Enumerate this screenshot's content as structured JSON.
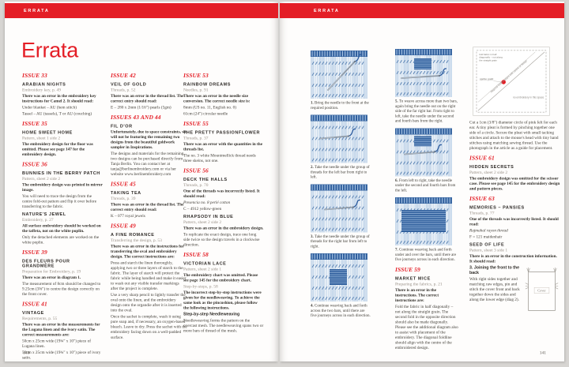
{
  "page": {
    "left_header": "ERRATA",
    "right_header": "ERRATA",
    "title": "Errata",
    "left_page_number": "140",
    "right_page_number": "141"
  },
  "colors": {
    "accent_red": "#e41e26",
    "step_bg": "#c9daec",
    "step_blue": "#32619e",
    "needle_gray": "#8f9aa6",
    "thread_blue": "#2a5a9d"
  },
  "left_columns": {
    "col1": [
      {
        "issue": "ISSUE 33",
        "sections": [
          {
            "title": "ARABIAN NIGHTS",
            "subtitle": "Embroidery key, p. 49",
            "paras": [
              {
                "style": "bold",
                "text": "There was an error in the embroidery key instructions for Camel 2. It should read:"
              },
              {
                "style": "normal",
                "text": "Under blanket – AU (hem stitch)"
              },
              {
                "style": "normal",
                "text": "Tassel – AU (tassels), T or AU (couching)"
              }
            ]
          }
        ]
      },
      {
        "issue": "ISSUE 35",
        "sections": [
          {
            "title": "HOME SWEET HOME",
            "subtitle": "Pattern, sheet 1 side 2",
            "paras": [
              {
                "style": "bold",
                "text": "The embroidery design for the floor was omitted. Please see page 147 for the embroidery design."
              }
            ]
          }
        ]
      },
      {
        "issue": "ISSUE 36",
        "sections": [
          {
            "title": "BUNNIES IN THE BERRY PATCH",
            "subtitle": "Pattern, sheet 2 side 2",
            "paras": [
              {
                "style": "bold",
                "text": "The embroidery design was printed in mirror image."
              },
              {
                "style": "normal",
                "text": "You will need to trace the design from the centre fold-out pattern and flip it over before transferring to the fabric."
              }
            ]
          },
          {
            "title": "NATURE'S JEWEL",
            "subtitle": "Embroidery, p. 27",
            "paras": [
              {
                "style": "bold",
                "text": "All surface embroidery should be worked on the taffeta, not on the white poplin."
              },
              {
                "style": "normal",
                "text": "Only the detached elements are worked on the white poplin."
              }
            ]
          }
        ]
      },
      {
        "issue": "ISSUE 39",
        "sections": [
          {
            "title": "DES FLEURS POUR GRANDMÈRE",
            "subtitle": "Preparation for Embroidery, p. 19",
            "paras": [
              {
                "style": "bold",
                "text": "There was an error in diagram 1."
              },
              {
                "style": "normal",
                "text": "The measurement of 8cm should be changed to 9.25cm (3⅝\") to centre the design correctly on the front cover."
              }
            ]
          }
        ]
      },
      {
        "issue": "ISSUE 41",
        "sections": [
          {
            "title": "VINTAGE",
            "subtitle": "Requirements, p. 55",
            "paras": [
              {
                "style": "bold",
                "text": "There was an error in the measurements for the Lugana linen and the ivory satin. The correct measurements are:"
              },
              {
                "style": "normal",
                "text": "50cm x 25cm wide (19¾\" x 10\") piece of Lugana linen."
              },
              {
                "style": "normal",
                "text": "50cm x 25cm wide (19¾\" x 10\") piece of ivory satin."
              }
            ]
          }
        ]
      }
    ],
    "col2": [
      {
        "issue": "ISSUE 42",
        "sections": [
          {
            "title": "VEIL OF GOLD",
            "subtitle": "Threads, p. 52",
            "paras": [
              {
                "style": "bold",
                "text": "There was an error in the thread list. The correct entry should read:"
              },
              {
                "style": "normal",
                "text": "E – 280 x 2mm (1/16\") pearls (5gm)"
              }
            ]
          }
        ]
      },
      {
        "issue": "ISSUES 43 AND 44",
        "sections": [
          {
            "title": "FIL D'OR",
            "subtitle": "",
            "paras": [
              {
                "style": "bold",
                "text": "Unfortunately, due to space constraints, we will not be featuring the remaining two designs from the beautiful goldwork sampler in Inspirations."
              },
              {
                "style": "normal",
                "text": "The designs and materials for the remaining two designs can be purchased directly from Tanja Berlin. You can contact her at tanja@berlinembroidery.com or via her website www.berlinembroidery.com"
              }
            ]
          }
        ]
      },
      {
        "issue": "ISSUE 45",
        "sections": [
          {
            "title": "TAKING TEA",
            "subtitle": "Threads, p. 39",
            "paras": [
              {
                "style": "bold",
                "text": "There was an error in the thread list. The correct entry should read:"
              },
              {
                "style": "normal",
                "text": "K – 077 royal jewels"
              }
            ]
          }
        ]
      },
      {
        "issue": "ISSUE 49",
        "sections": [
          {
            "title": "A FINE ROMANCE",
            "subtitle": "Transferring the design, p. 53",
            "paras": [
              {
                "style": "bold",
                "text": "There was an error in the instructions for transferring the oval and embroidery design. The correct instructions are:"
              },
              {
                "style": "normal",
                "text": "Press and starch the linen thoroughly, applying two or three layers of starch to the fabric. The layer of starch will protect the fabric while being handled and make it easier to wash out any visible transfer markings after the project is complete."
              },
              {
                "style": "normal",
                "text": "Use a very sharp pencil to lightly transfer the oval onto the linen, and the embroidery design onto the organdie after it is inserted into the oval."
              },
              {
                "style": "normal",
                "text": "Once the sachet is complete, wash it using pure soap and, if necessary, an oxygen-based bleach. Leave to dry. Press the sachet with the embroidery facing down on a well-padded surface."
              }
            ]
          }
        ]
      }
    ],
    "col3": [
      {
        "issue": "ISSUE 53",
        "sections": [
          {
            "title": "RAINBOW DREAMS",
            "subtitle": "Needles, p. 91",
            "paras": [
              {
                "style": "bold",
                "text": "There was an error in the needle size conversion. The correct needle size is:"
              },
              {
                "style": "normal",
                "text": "8mm (US no. 11, English no. 0)"
              },
              {
                "style": "normal",
                "text": "61cm (24\") circular needle"
              }
            ]
          }
        ]
      },
      {
        "issue": "ISSUE 55",
        "sections": [
          {
            "title": "THE PRETTY PASSIONFLOWER",
            "subtitle": "Threads, p. 37",
            "paras": [
              {
                "style": "bold",
                "text": "There was an error with the quantities in the threads list."
              },
              {
                "style": "normal",
                "text": "The no. 3 white Mountmellick thread needs three skeins, not one."
              }
            ]
          }
        ]
      },
      {
        "issue": "ISSUE 56",
        "sections": [
          {
            "title": "DECK THE HALLS",
            "subtitle": "Threads, p. 70",
            "paras": [
              {
                "style": "bold",
                "text": "One of the threads was incorrectly listed. It should read:"
              },
              {
                "style": "italic",
                "text": "Presencia no. 8 perlé cotton"
              },
              {
                "style": "normal",
                "text": "C – 4912 yellow-green"
              }
            ]
          },
          {
            "title": "RHAPSODY IN BLUE",
            "subtitle": "Pattern, sheet 2 side 2",
            "paras": [
              {
                "style": "bold",
                "text": "There was an error in the embroidery design."
              },
              {
                "style": "normal",
                "text": "To replicate the exact design, trace one long side twice so the design travels in a clockwise direction."
              }
            ]
          }
        ]
      },
      {
        "issue": "ISSUE 58",
        "sections": [
          {
            "title": "VICTORIAN LACE",
            "subtitle": "Pattern, sheet 2 side 1",
            "paras": [
              {
                "style": "bold",
                "text": "The embroidery chart was omitted. Please see page 145 for the embroidery chart."
              },
              {
                "style": "sub",
                "text": "Step-by-steps, p. 58"
              },
              {
                "style": "bold",
                "text": "The incorrect step-by-step instructions were given for the needleweaving. To achieve the same look as the pincushion, please follow the following instructions."
              },
              {
                "style": "boldhead",
                "text": "Step-by-step Needleweaving"
              },
              {
                "style": "normal",
                "text": "Needleweaving forms the pattern on the overcast mesh. The needleweaving spans two or more bars of thread of the mesh."
              }
            ]
          }
        ]
      }
    ]
  },
  "steps": {
    "col1": [
      {
        "num": "1.",
        "text": "Bring the needle to the front at the required position.",
        "art": {
          "patch": null,
          "needle": [
            22,
            50,
            56,
            14
          ],
          "thread": true
        }
      },
      {
        "num": "2.",
        "text": "Take the needle under the group of threads for the left bar from right to left.",
        "art": {
          "patch": null,
          "needle": [
            12,
            30,
            48,
            27
          ],
          "thread": true
        }
      },
      {
        "num": "3.",
        "text": "Take the needle under the group of threads for the right bar from left to right.",
        "art": {
          "patch": null,
          "needle": [
            18,
            32,
            54,
            29
          ],
          "thread": true
        }
      },
      {
        "num": "4.",
        "text": "Continue weaving back and forth across the two bars, until there are five journeys across in each direction.",
        "art": {
          "patch": [
            24,
            20,
            22,
            20
          ],
          "needle": null,
          "thread": false
        }
      }
    ],
    "col2": [
      {
        "num": "5.",
        "text": "To weave across more than two bars, again bring the needle out on the right side of the far right bar. From right to left, take the needle under the second and fourth bars from the right.",
        "art": {
          "patch": [
            24,
            12,
            22,
            14
          ],
          "needle": [
            8,
            37,
            56,
            34
          ],
          "thread": true
        }
      },
      {
        "num": "6.",
        "text": "From left to right, take the needle under the second and fourth bars from the left.",
        "art": {
          "patch": [
            24,
            10,
            22,
            13
          ],
          "needle": [
            12,
            33,
            50,
            30
          ],
          "thread": true
        }
      },
      {
        "num": "7.",
        "text": "Continue weaving back and forth under and over the bars, until there are five journeys across in each direction.",
        "art": {
          "patch": [
            8,
            16,
            56,
            28
          ],
          "needle": null,
          "thread": false
        }
      }
    ],
    "issue59": {
      "issue": "ISSUE 59",
      "sections": [
        {
          "title": "MARKET MICE",
          "subtitle": "Preparing the fabrics, p. 21",
          "paras": [
            {
              "style": "bold",
              "text": "There is an error in the instructions. The correct instructions are:"
            },
            {
              "style": "normal",
              "text": "Fold the fabric in half diagonally – not along the straight grain. The second fold in the opposite direction should also be made diagonally. Please see the additional diagram also to assist with placement of the embroidery. The diagonal foldline should align with the centre of the embroidered design."
            }
          ]
        }
      ]
    }
  },
  "right_column": {
    "placement_diagram": {
      "corner_note_lines": [
        "fold fabric in half",
        "diagonally – not along",
        "the straight grain"
      ],
      "centre_label": "centre point",
      "diagonal_label": "diagonal foldline aligns with centre of design",
      "space_label": "no embroidery in this space"
    },
    "continuation_para": "Cut a 1cm (3/8\") diameter circle of pink felt for each ear. A tiny pleat is formed by pinching together one side of a circle. Secure the pleat with small tacking stitches and attach to the mouse's head with tiny hand stitches using matching sewing thread. Use the photograph in the article as a guide for placement.",
    "entries": [
      {
        "issue": "ISSUE 61",
        "sections": [
          {
            "title": "HIDDEN SECRETS",
            "subtitle": "Pattern, sheet 2 side 2",
            "paras": [
              {
                "style": "bold",
                "text": "The embroidery design was omitted for the scissor case. Please see page 145 for the embroidery design and pattern pieces."
              }
            ]
          }
        ]
      },
      {
        "issue": "ISSUE 63",
        "sections": [
          {
            "title": "MEMORIES – PANSIES",
            "subtitle": "Threads, p. 77",
            "paras": [
              {
                "style": "bold",
                "text": "One of the threads was incorrectly listed. It should read:"
              },
              {
                "style": "italic",
                "text": "Rajmahal rayon thread"
              },
              {
                "style": "normal",
                "text": "F = 121 maidenhair"
              }
            ]
          },
          {
            "title": "SEED OF LIFE",
            "subtitle": "Pattern, sheet 3 side 1",
            "cover_diagram_after": 0,
            "paras": [
              {
                "style": "bold",
                "text": "There is an error in the construction information. It should read:"
              },
              {
                "style": "boldhead",
                "text": "3. Joining the front to the back"
              },
              {
                "style": "normal",
                "text": "With right sides together and matching raw edges, pin and stitch the cover front and back together down the sides and along the lower edge (diag 2)."
              }
            ]
          }
        ]
      }
    ]
  },
  "cover_diagram": {
    "label": "Cover"
  }
}
